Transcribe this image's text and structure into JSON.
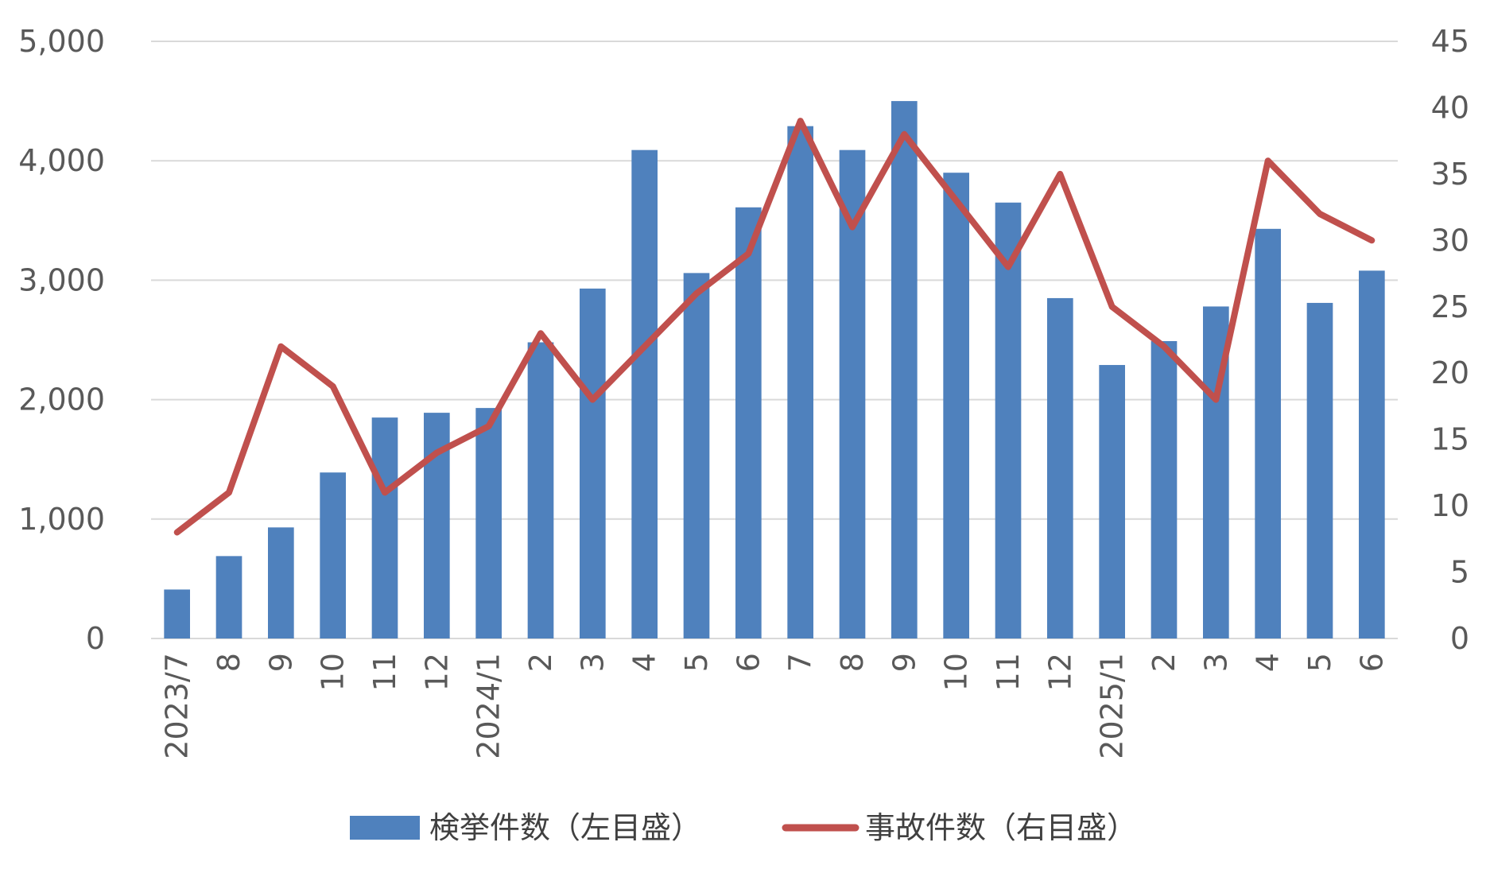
{
  "chart_data": {
    "type": "bar",
    "categories": [
      "2023/7",
      "8",
      "9",
      "10",
      "11",
      "12",
      "2024/1",
      "2",
      "3",
      "4",
      "5",
      "6",
      "7",
      "8",
      "9",
      "10",
      "11",
      "12",
      "2025/1",
      "2",
      "3",
      "4",
      "5",
      "6"
    ],
    "series": [
      {
        "name": "検挙件数（左目盛）",
        "type": "bar",
        "axis": "left",
        "color": "#4F81BD",
        "values": [
          410,
          690,
          930,
          1390,
          1850,
          1890,
          1930,
          2480,
          2930,
          4090,
          3060,
          3610,
          4290,
          4090,
          4500,
          3900,
          3650,
          2850,
          2290,
          2490,
          2780,
          3430,
          2810,
          3080
        ]
      },
      {
        "name": "事故件数（右目盛）",
        "type": "line",
        "axis": "right",
        "color": "#C0504D",
        "values": [
          8,
          11,
          22,
          19,
          11,
          14,
          16,
          23,
          18,
          22,
          26,
          29,
          39,
          31,
          38,
          33,
          28,
          35,
          25,
          22,
          18,
          36,
          32,
          30
        ]
      }
    ],
    "y_left": {
      "min": 0,
      "max": 5000,
      "ticks": [
        0,
        1000,
        2000,
        3000,
        4000,
        5000
      ],
      "tick_labels": [
        "0",
        "1,000",
        "2,000",
        "3,000",
        "4,000",
        "5,000"
      ]
    },
    "y_right": {
      "min": 0,
      "max": 45,
      "ticks": [
        0,
        5,
        10,
        15,
        20,
        25,
        30,
        35,
        40,
        45
      ],
      "tick_labels": [
        "0",
        "5",
        "10",
        "15",
        "20",
        "25",
        "30",
        "35",
        "40",
        "45"
      ]
    },
    "grid": true,
    "legend_position": "bottom",
    "title": "",
    "xlabel": "",
    "ylabel": ""
  }
}
